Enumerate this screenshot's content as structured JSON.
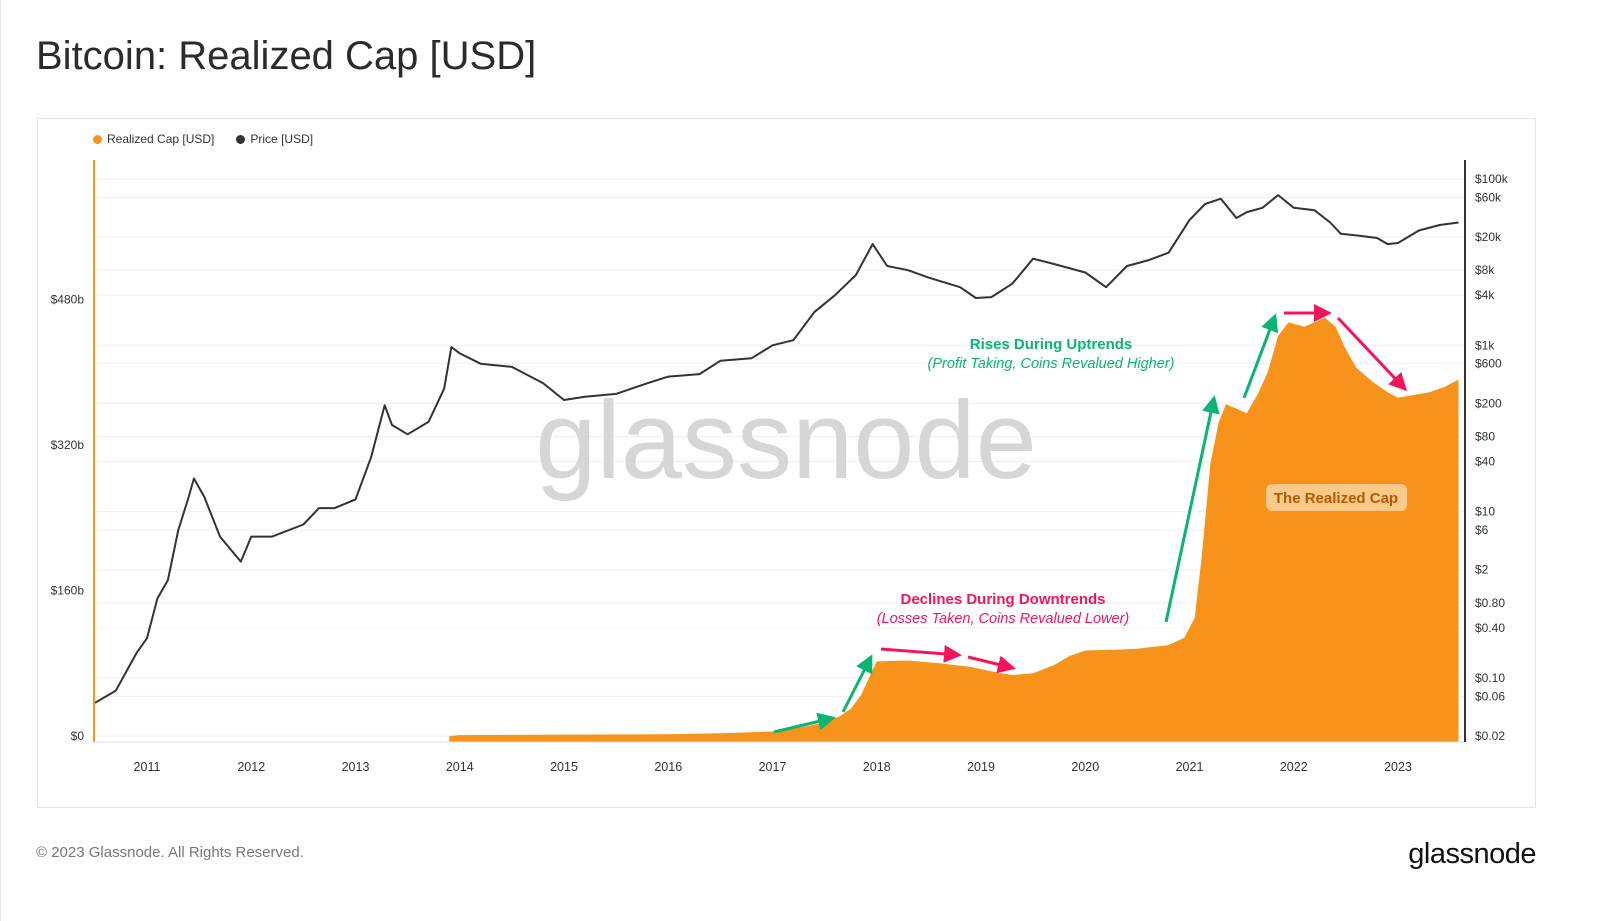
{
  "title": "Bitcoin: Realized Cap [USD]",
  "footer": {
    "copyright": "© 2023 Glassnode. All Rights Reserved.",
    "logo": "glassnode"
  },
  "watermark": "glassnode",
  "chart_data": {
    "type": "area+line",
    "title": "Bitcoin: Realized Cap [USD]",
    "legend": {
      "placement": "top-left",
      "entries": [
        {
          "name": "Realized Cap [USD]",
          "color": "#f7931a"
        },
        {
          "name": "Price [USD]",
          "color": "#333333"
        }
      ]
    },
    "x_ticks": [
      "2011",
      "2012",
      "2013",
      "2014",
      "2015",
      "2016",
      "2017",
      "2018",
      "2019",
      "2020",
      "2021",
      "2022",
      "2023"
    ],
    "xlim": [
      2010.45,
      2023.6
    ],
    "left_axis": {
      "scale": "linear",
      "ylim": [
        0,
        640
      ],
      "unit": "billion USD",
      "tick_labels": [
        "$0",
        "$160b",
        "$320b",
        "$480b"
      ],
      "tick_values": [
        0,
        160,
        320,
        480
      ]
    },
    "right_axis": {
      "scale": "log",
      "ylim": [
        0.02,
        100000
      ],
      "tick_labels": [
        "$0.02",
        "$0.06",
        "$0.10",
        "$0.40",
        "$0.80",
        "$2",
        "$6",
        "$10",
        "$40",
        "$80",
        "$200",
        "$600",
        "$1k",
        "$4k",
        "$8k",
        "$20k",
        "$60k",
        "$100k"
      ],
      "tick_values": [
        0.02,
        0.06,
        0.1,
        0.4,
        0.8,
        2,
        6,
        10,
        40,
        80,
        200,
        600,
        1000,
        4000,
        8000,
        20000,
        60000,
        100000
      ]
    },
    "grid": true,
    "series": [
      {
        "name": "Realized Cap [USD]",
        "axis": "left",
        "style": "area",
        "color": "#f7931a",
        "x": [
          2013.9,
          2014.0,
          2015.0,
          2016.0,
          2016.5,
          2017.0,
          2017.3,
          2017.5,
          2017.65,
          2017.75,
          2017.85,
          2017.95,
          2018.0,
          2018.3,
          2018.6,
          2018.9,
          2019.1,
          2019.3,
          2019.5,
          2019.7,
          2019.85,
          2020.0,
          2020.3,
          2020.5,
          2020.8,
          2020.95,
          2021.05,
          2021.12,
          2021.2,
          2021.28,
          2021.35,
          2021.45,
          2021.55,
          2021.65,
          2021.75,
          2021.85,
          2021.95,
          2022.1,
          2022.2,
          2022.3,
          2022.4,
          2022.5,
          2022.6,
          2022.75,
          2022.9,
          2023.0,
          2023.15,
          2023.3,
          2023.45,
          2023.58
        ],
        "values": [
          0,
          1,
          1.5,
          2,
          3,
          5,
          10,
          15,
          22,
          30,
          45,
          70,
          82,
          83,
          80,
          76,
          71,
          67,
          69,
          78,
          88,
          94,
          95,
          96,
          100,
          108,
          130,
          200,
          300,
          345,
          365,
          360,
          355,
          375,
          400,
          440,
          455,
          450,
          455,
          460,
          450,
          425,
          405,
          390,
          378,
          372,
          375,
          378,
          384,
          392
        ]
      },
      {
        "name": "Price [USD]",
        "axis": "right",
        "style": "line",
        "color": "#333333",
        "x": [
          2010.5,
          2010.7,
          2010.9,
          2011.0,
          2011.1,
          2011.2,
          2011.3,
          2011.4,
          2011.45,
          2011.55,
          2011.7,
          2011.9,
          2012.0,
          2012.2,
          2012.5,
          2012.65,
          2012.8,
          2013.0,
          2013.15,
          2013.28,
          2013.35,
          2013.5,
          2013.7,
          2013.85,
          2013.92,
          2014.0,
          2014.2,
          2014.5,
          2014.8,
          2015.0,
          2015.2,
          2015.5,
          2015.8,
          2016.0,
          2016.3,
          2016.5,
          2016.8,
          2017.0,
          2017.2,
          2017.4,
          2017.6,
          2017.8,
          2017.96,
          2018.1,
          2018.3,
          2018.5,
          2018.8,
          2018.95,
          2019.1,
          2019.3,
          2019.5,
          2019.7,
          2020.0,
          2020.2,
          2020.4,
          2020.6,
          2020.8,
          2021.0,
          2021.15,
          2021.3,
          2021.45,
          2021.55,
          2021.7,
          2021.85,
          2022.0,
          2022.2,
          2022.35,
          2022.45,
          2022.6,
          2022.8,
          2022.9,
          2023.0,
          2023.2,
          2023.4,
          2023.58
        ],
        "values": [
          0.05,
          0.07,
          0.2,
          0.3,
          0.9,
          1.5,
          6,
          15,
          25,
          15,
          5,
          2.5,
          5,
          5,
          7,
          11,
          11,
          14,
          45,
          190,
          110,
          85,
          120,
          300,
          950,
          800,
          600,
          550,
          350,
          220,
          240,
          260,
          350,
          420,
          450,
          650,
          700,
          1000,
          1150,
          2500,
          4000,
          7000,
          16500,
          9000,
          8000,
          6500,
          5000,
          3700,
          3800,
          5500,
          11000,
          9500,
          7500,
          5000,
          9000,
          10500,
          13000,
          32000,
          50000,
          58000,
          34000,
          40000,
          45000,
          64000,
          45000,
          42000,
          30000,
          22000,
          21000,
          19500,
          16500,
          17000,
          24000,
          28000,
          30000
        ]
      }
    ],
    "annotations": {
      "rises_title": "Rises During Uptrends",
      "rises_subtitle": "(Profit Taking, Coins Revalued Higher)",
      "declines_title": "Declines During Downtrends",
      "declines_subtitle": "(Losses Taken, Coins Revalued Lower)",
      "realized_cap_label": "The Realized Cap",
      "up_color": "#0ab573",
      "down_color": "#f5145a"
    }
  }
}
